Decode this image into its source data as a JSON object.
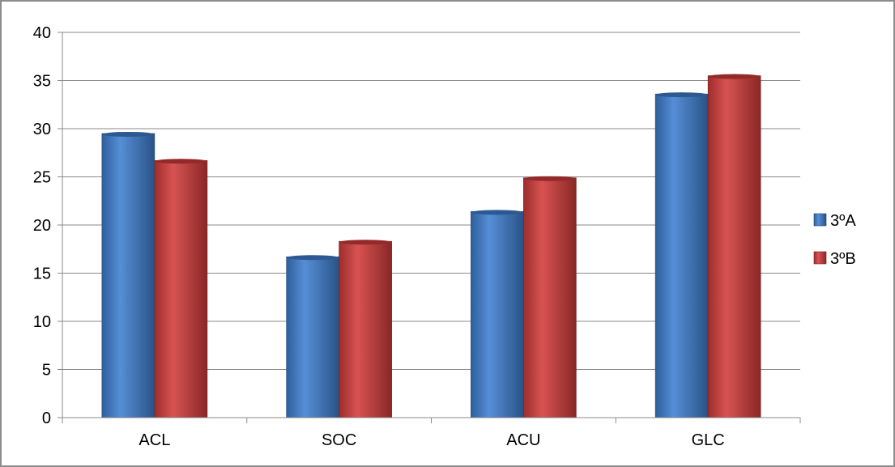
{
  "chart_data": {
    "type": "bar",
    "title": "",
    "xlabel": "",
    "ylabel": "",
    "categories": [
      "ACL",
      "SOC",
      "ACU",
      "GLC"
    ],
    "series": [
      {
        "name": "3ºA",
        "color": "#3f7fd0",
        "values": [
          29.5,
          16.7,
          21.4,
          33.6
        ]
      },
      {
        "name": "3ºB",
        "color": "#d23c3a",
        "values": [
          26.7,
          18.3,
          24.9,
          35.5
        ]
      }
    ],
    "ylim": [
      0,
      40
    ],
    "yticks": [
      0,
      5,
      10,
      15,
      20,
      25,
      30,
      35,
      40
    ],
    "grid": true,
    "legend_position": "right"
  }
}
